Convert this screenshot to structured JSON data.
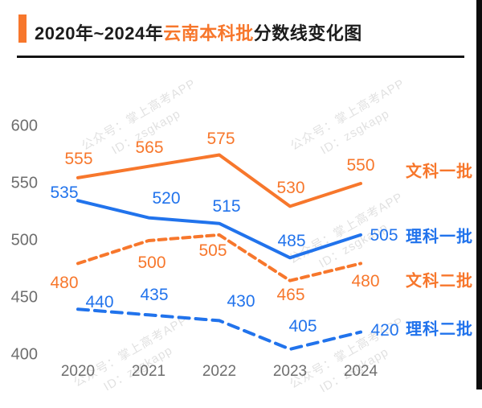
{
  "header": {
    "title_prefix": "2020年~2024年",
    "title_highlight": "云南本科批",
    "title_suffix": "分数线变化图"
  },
  "watermark": {
    "line1": "公众号：掌上高考APP",
    "line2": "ID：zsgkapp"
  },
  "colors": {
    "orange": "#F7772C",
    "blue": "#2173EC",
    "axis_text": "#6E6E6E",
    "title_text": "#1C1C1C",
    "divider": "#141414",
    "edge_border": "#0D0D0D"
  },
  "chart_data": {
    "type": "line",
    "title": "2020年~2024年云南本科批分数线变化图",
    "x": [
      "2020",
      "2021",
      "2022",
      "2023",
      "2024"
    ],
    "yticks": [
      600,
      550,
      500,
      450,
      400
    ],
    "ylim": [
      400,
      600
    ],
    "grid": false,
    "legend_position": "right",
    "series": [
      {
        "name": "文科一批",
        "color": "#F7772C",
        "dash": "solid",
        "values": [
          555,
          565,
          575,
          530,
          550
        ]
      },
      {
        "name": "理科一批",
        "color": "#2173EC",
        "dash": "solid",
        "values": [
          535,
          520,
          515,
          485,
          505
        ]
      },
      {
        "name": "文科二批",
        "color": "#F7772C",
        "dash": "dashed",
        "values": [
          480,
          500,
          505,
          465,
          480
        ]
      },
      {
        "name": "理科二批",
        "color": "#2173EC",
        "dash": "dashed",
        "values": [
          440,
          435,
          430,
          405,
          420
        ]
      }
    ]
  }
}
